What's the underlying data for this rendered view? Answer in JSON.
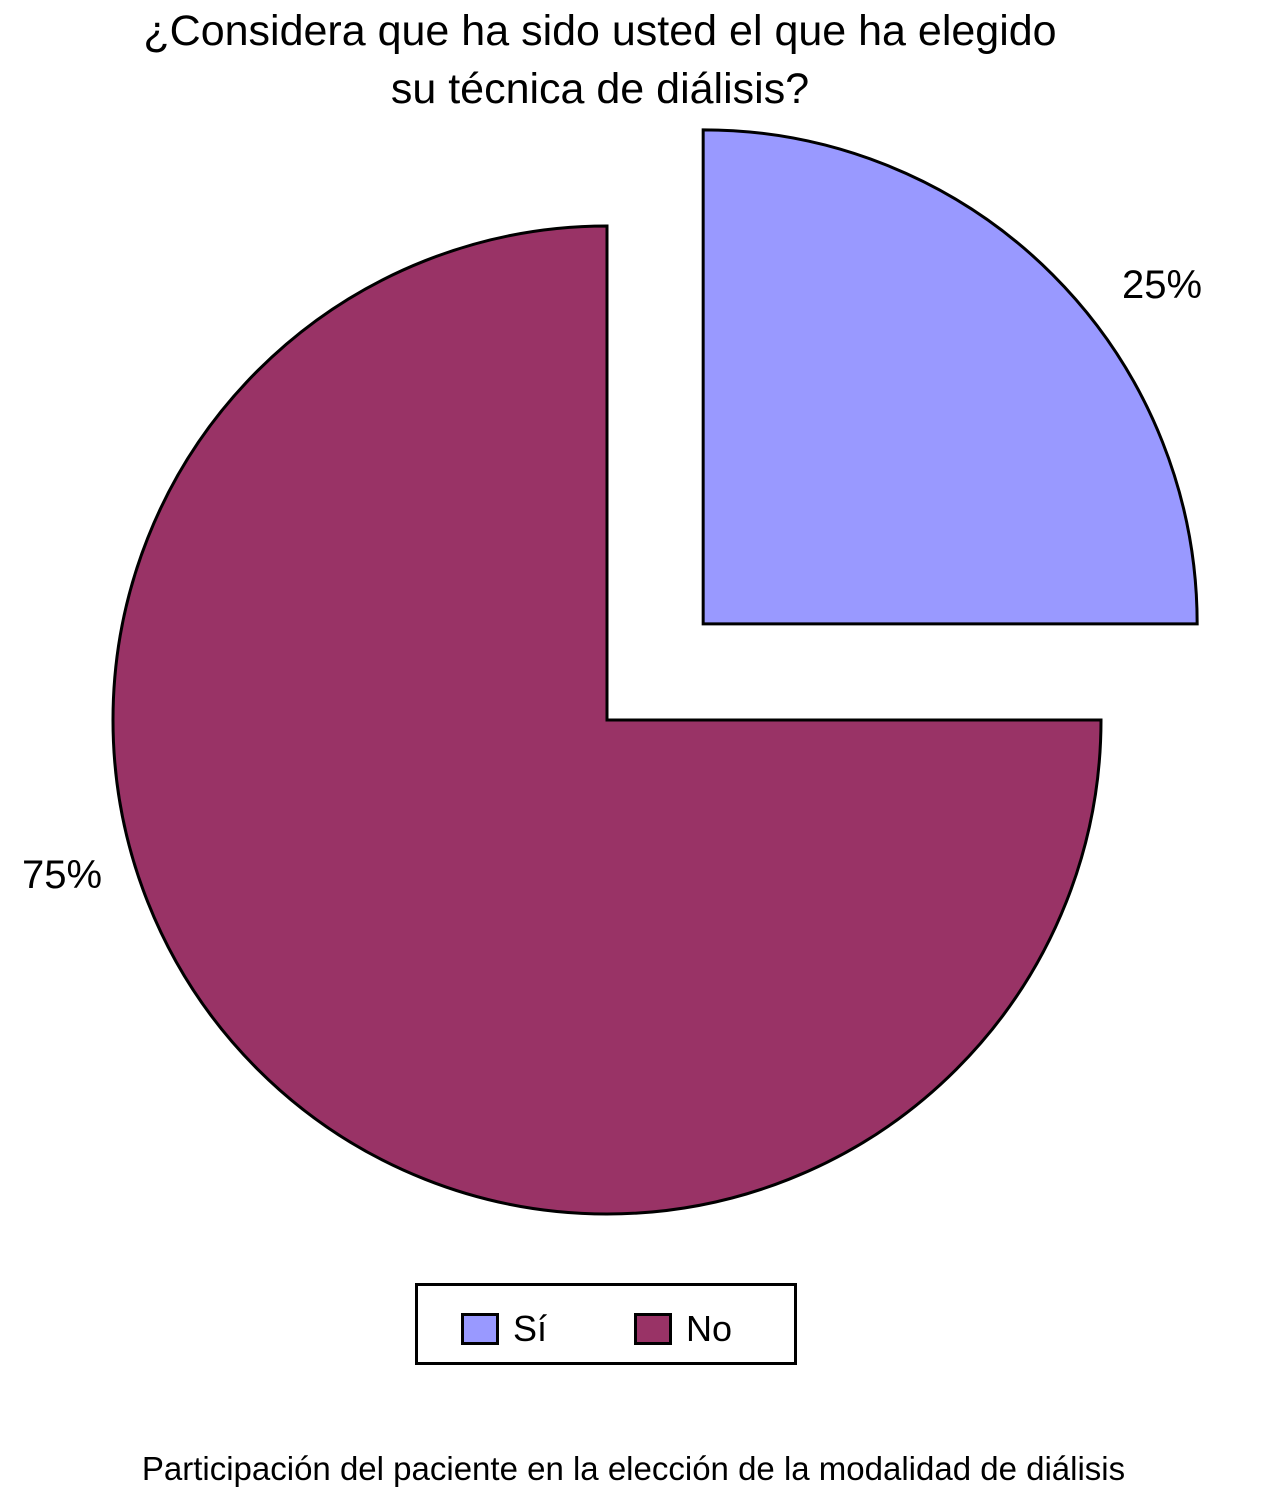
{
  "chart_data": {
    "type": "pie",
    "title": "¿Considera que ha sido usted el que ha elegido su técnica de diálisis?",
    "title_lines": [
      "¿Considera que ha sido usted el que ha elegido",
      "su técnica de diálisis?"
    ],
    "caption": "Participación del paciente en la elección de la modalidad de diálisis",
    "slices": [
      {
        "label": "Sí",
        "value": 25,
        "data_label": "25%",
        "color": "#9999FF",
        "exploded": true
      },
      {
        "label": "No",
        "value": 75,
        "data_label": "75%",
        "color": "#993366",
        "exploded": false
      }
    ],
    "start_angle_deg": 0,
    "direction": "clockwise",
    "legend": {
      "position": "bottom",
      "entries": [
        "Sí",
        "No"
      ]
    }
  }
}
